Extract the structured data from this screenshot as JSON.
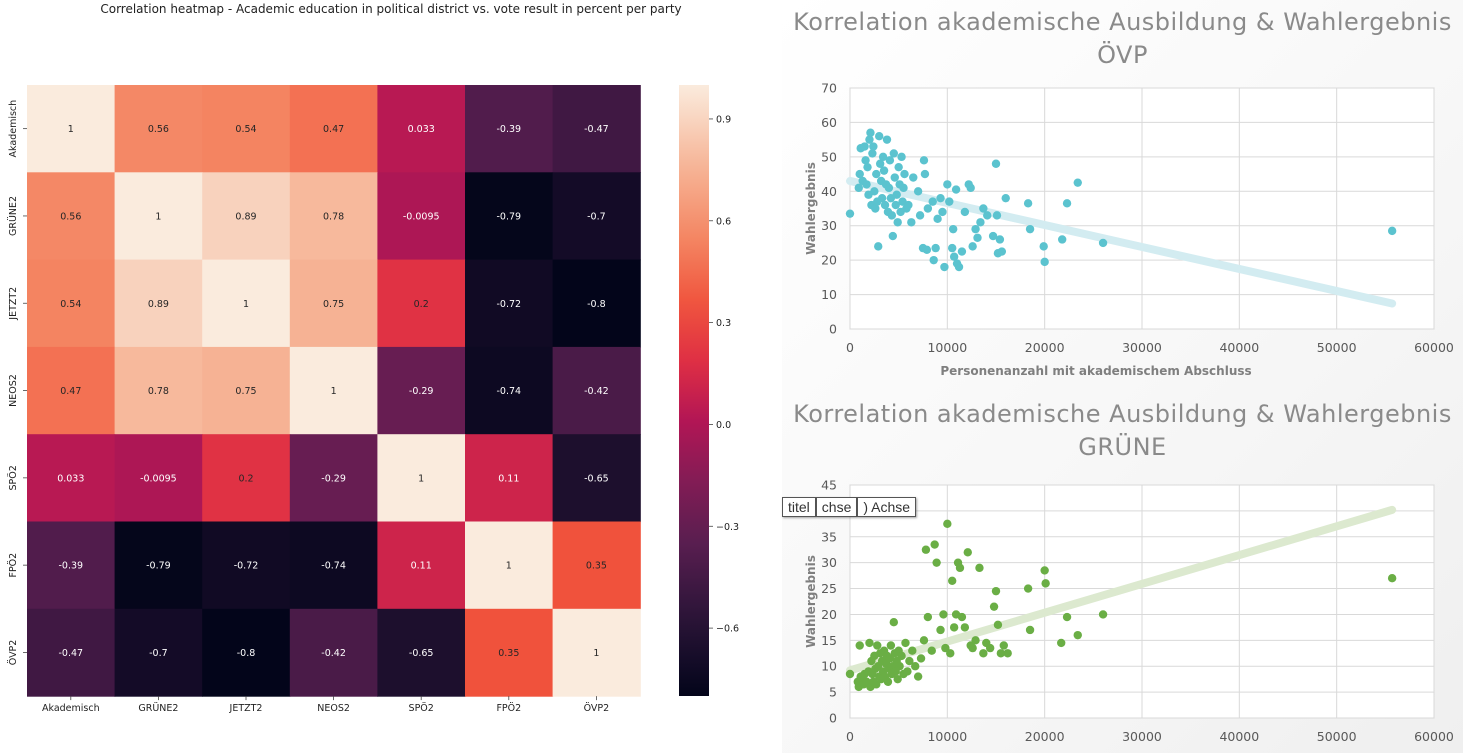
{
  "chart_data": [
    {
      "type": "heatmap",
      "title": "Correlation heatmap - Academic education in political district vs. vote result in percent per party",
      "row_labels": [
        "Akademisch",
        "GRÜNE2",
        "JETZT2",
        "NEOS2",
        "SPÖ2",
        "FPÖ2",
        "ÖVP2"
      ],
      "col_labels": [
        "Akademisch",
        "GRÜNE2",
        "JETZT2",
        "NEOS2",
        "SPÖ2",
        "FPÖ2",
        "ÖVP2"
      ],
      "values": [
        [
          1,
          0.56,
          0.54,
          0.47,
          0.033,
          -0.39,
          -0.47
        ],
        [
          0.56,
          1,
          0.89,
          0.78,
          -0.0095,
          -0.79,
          -0.7
        ],
        [
          0.54,
          0.89,
          1,
          0.75,
          0.2,
          -0.72,
          -0.8
        ],
        [
          0.47,
          0.78,
          0.75,
          1,
          -0.29,
          -0.74,
          -0.42
        ],
        [
          0.033,
          -0.0095,
          0.2,
          -0.29,
          1,
          0.11,
          -0.65
        ],
        [
          -0.39,
          -0.79,
          -0.72,
          -0.74,
          0.11,
          1,
          0.35
        ],
        [
          -0.47,
          -0.7,
          -0.8,
          -0.42,
          -0.65,
          0.35,
          1
        ]
      ],
      "annotations": [
        [
          "1",
          "0.56",
          "0.54",
          "0.47",
          "0.033",
          "-0.39",
          "-0.47"
        ],
        [
          "0.56",
          "1",
          "0.89",
          "0.78",
          "-0.0095",
          "-0.79",
          "-0.7"
        ],
        [
          "0.54",
          "0.89",
          "1",
          "0.75",
          "0.2",
          "-0.72",
          "-0.8"
        ],
        [
          "0.47",
          "0.78",
          "0.75",
          "1",
          "-0.29",
          "-0.74",
          "-0.42"
        ],
        [
          "0.033",
          "-0.0095",
          "0.2",
          "-0.29",
          "1",
          "0.11",
          "-0.65"
        ],
        [
          "-0.39",
          "-0.79",
          "-0.72",
          "-0.74",
          "0.11",
          "1",
          "0.35"
        ],
        [
          "-0.47",
          "-0.7",
          "-0.8",
          "-0.42",
          "-0.65",
          "0.35",
          "1"
        ]
      ],
      "colorbar": {
        "range": [
          -0.8,
          1.0
        ],
        "ticks": [
          0.9,
          0.6,
          0.3,
          0.0,
          -0.3,
          -0.6
        ],
        "tick_labels": [
          "0.9",
          "0.6",
          "0.3",
          "0.0",
          "−0.3",
          "−0.6"
        ]
      },
      "colormap": "rocket"
    },
    {
      "type": "scatter",
      "title": "Korrelation akademische Ausbildung & Wahlergebnis ÖVP",
      "xlabel": "Personenanzahl mit akademischem Abschluss",
      "ylabel": "Wahlergebnis",
      "xlim": [
        0,
        60000
      ],
      "ylim": [
        0,
        70
      ],
      "xticks": [
        0,
        10000,
        20000,
        30000,
        40000,
        50000,
        60000
      ],
      "yticks": [
        0,
        10,
        20,
        30,
        40,
        50,
        60,
        70
      ],
      "grid": true,
      "point_color": "#5bc3cf",
      "trendline": {
        "x": [
          0,
          55700
        ],
        "y": [
          43,
          7.4
        ],
        "color": "#d3ecf1"
      },
      "points": [
        [
          0,
          33.5
        ],
        [
          900,
          41
        ],
        [
          1000,
          45
        ],
        [
          1100,
          52.5
        ],
        [
          1300,
          43
        ],
        [
          1500,
          53
        ],
        [
          1600,
          49
        ],
        [
          1700,
          42
        ],
        [
          1800,
          47
        ],
        [
          1900,
          39
        ],
        [
          2000,
          55
        ],
        [
          2100,
          57
        ],
        [
          2200,
          36
        ],
        [
          2300,
          51
        ],
        [
          2400,
          53
        ],
        [
          2500,
          40
        ],
        [
          2600,
          35
        ],
        [
          2700,
          45
        ],
        [
          2800,
          37
        ],
        [
          2900,
          24
        ],
        [
          3000,
          56
        ],
        [
          3100,
          48
        ],
        [
          3200,
          43
        ],
        [
          3300,
          38
        ],
        [
          3400,
          50
        ],
        [
          3500,
          46
        ],
        [
          3600,
          36
        ],
        [
          3700,
          42
        ],
        [
          3800,
          55
        ],
        [
          3900,
          34
        ],
        [
          4000,
          41
        ],
        [
          4100,
          49
        ],
        [
          4200,
          38
        ],
        [
          4300,
          33
        ],
        [
          4400,
          27
        ],
        [
          4500,
          51
        ],
        [
          4600,
          44
        ],
        [
          4700,
          36
        ],
        [
          4800,
          39
        ],
        [
          4900,
          31
        ],
        [
          5000,
          47
        ],
        [
          5100,
          42
        ],
        [
          5200,
          34
        ],
        [
          5300,
          50
        ],
        [
          5400,
          37
        ],
        [
          5500,
          41
        ],
        [
          5600,
          45
        ],
        [
          5800,
          35
        ],
        [
          6000,
          36
        ],
        [
          6300,
          31
        ],
        [
          6500,
          44
        ],
        [
          7000,
          40
        ],
        [
          7200,
          33
        ],
        [
          7500,
          23.5
        ],
        [
          7600,
          49
        ],
        [
          7700,
          45
        ],
        [
          7900,
          23
        ],
        [
          8000,
          35
        ],
        [
          8500,
          37
        ],
        [
          8600,
          20
        ],
        [
          8800,
          23.5
        ],
        [
          9000,
          32
        ],
        [
          9300,
          38
        ],
        [
          9500,
          34
        ],
        [
          9700,
          18
        ],
        [
          10000,
          42
        ],
        [
          10200,
          37
        ],
        [
          10500,
          23.5
        ],
        [
          10600,
          29
        ],
        [
          10700,
          21
        ],
        [
          10900,
          40.5
        ],
        [
          11000,
          19
        ],
        [
          11200,
          18
        ],
        [
          11500,
          22.5
        ],
        [
          11800,
          34
        ],
        [
          12200,
          42
        ],
        [
          12400,
          41
        ],
        [
          12600,
          24
        ],
        [
          12900,
          29
        ],
        [
          13100,
          26.5
        ],
        [
          13400,
          31
        ],
        [
          13700,
          35
        ],
        [
          14100,
          33
        ],
        [
          14700,
          27
        ],
        [
          15000,
          48
        ],
        [
          15100,
          33
        ],
        [
          15200,
          22
        ],
        [
          15400,
          26
        ],
        [
          15600,
          22.5
        ],
        [
          16000,
          38
        ],
        [
          18300,
          36.5
        ],
        [
          18500,
          29
        ],
        [
          19900,
          24
        ],
        [
          20000,
          19.5
        ],
        [
          21800,
          26
        ],
        [
          22300,
          36.5
        ],
        [
          23400,
          42.5
        ],
        [
          26000,
          25
        ],
        [
          55700,
          28.5
        ]
      ]
    },
    {
      "type": "scatter",
      "title": "Korrelation akademische Ausbildung & Wahlergebnis GRÜNE",
      "xlabel": "",
      "ylabel": "Wahlergebnis",
      "xlim": [
        0,
        60000
      ],
      "ylim": [
        0,
        45
      ],
      "xticks": [
        0,
        10000,
        20000,
        30000,
        40000,
        50000,
        60000
      ],
      "yticks": [
        0,
        5,
        10,
        15,
        20,
        25,
        30,
        35,
        40,
        45
      ],
      "grid": true,
      "point_color": "#6aae45",
      "trendline": {
        "x": [
          0,
          55700
        ],
        "y": [
          9.2,
          40.2
        ],
        "color": "#dce9cf"
      },
      "points": [
        [
          0,
          8.5
        ],
        [
          800,
          7
        ],
        [
          900,
          6
        ],
        [
          1000,
          14
        ],
        [
          1100,
          8
        ],
        [
          1200,
          7.5
        ],
        [
          1400,
          6.5
        ],
        [
          1500,
          8.5
        ],
        [
          1700,
          7
        ],
        [
          1900,
          9
        ],
        [
          2000,
          14.5
        ],
        [
          2100,
          6
        ],
        [
          2200,
          11
        ],
        [
          2300,
          8.5
        ],
        [
          2400,
          7
        ],
        [
          2500,
          12
        ],
        [
          2600,
          9.5
        ],
        [
          2700,
          6.5
        ],
        [
          2800,
          14
        ],
        [
          2900,
          10
        ],
        [
          3000,
          8
        ],
        [
          3100,
          12.5
        ],
        [
          3200,
          7.5
        ],
        [
          3300,
          11
        ],
        [
          3400,
          9
        ],
        [
          3500,
          13
        ],
        [
          3600,
          8
        ],
        [
          3700,
          10.5
        ],
        [
          3800,
          12
        ],
        [
          3900,
          7
        ],
        [
          4000,
          9.5
        ],
        [
          4100,
          11.5
        ],
        [
          4200,
          14
        ],
        [
          4300,
          8.5
        ],
        [
          4400,
          10
        ],
        [
          4500,
          18.5
        ],
        [
          4600,
          12.5
        ],
        [
          4700,
          9
        ],
        [
          4800,
          11
        ],
        [
          4900,
          7.5
        ],
        [
          5000,
          13
        ],
        [
          5100,
          10
        ],
        [
          5300,
          12
        ],
        [
          5500,
          8.5
        ],
        [
          5700,
          14.5
        ],
        [
          5900,
          9
        ],
        [
          6100,
          11
        ],
        [
          6400,
          13
        ],
        [
          6700,
          10
        ],
        [
          7000,
          8
        ],
        [
          7300,
          11.5
        ],
        [
          7600,
          15
        ],
        [
          7800,
          32.5
        ],
        [
          8000,
          19.5
        ],
        [
          8400,
          13
        ],
        [
          8700,
          33.5
        ],
        [
          8900,
          30
        ],
        [
          9300,
          17
        ],
        [
          9600,
          20
        ],
        [
          9800,
          13.5
        ],
        [
          10000,
          37.5
        ],
        [
          10300,
          12.5
        ],
        [
          10500,
          26.5
        ],
        [
          10700,
          17.5
        ],
        [
          10900,
          20
        ],
        [
          11100,
          30
        ],
        [
          11300,
          29
        ],
        [
          11500,
          19.5
        ],
        [
          11800,
          17.5
        ],
        [
          12100,
          32
        ],
        [
          12400,
          14
        ],
        [
          12600,
          13.5
        ],
        [
          12900,
          15
        ],
        [
          13300,
          29
        ],
        [
          13700,
          12.5
        ],
        [
          14000,
          14.5
        ],
        [
          14400,
          13.5
        ],
        [
          14800,
          21.5
        ],
        [
          15000,
          24.5
        ],
        [
          15200,
          18
        ],
        [
          15500,
          12.5
        ],
        [
          15800,
          14
        ],
        [
          16200,
          12.5
        ],
        [
          18300,
          25
        ],
        [
          18500,
          17
        ],
        [
          20000,
          28.5
        ],
        [
          20100,
          26
        ],
        [
          21700,
          14.5
        ],
        [
          22300,
          19.5
        ],
        [
          23400,
          16
        ],
        [
          26000,
          20
        ],
        [
          55700,
          27
        ]
      ]
    }
  ],
  "tooltip": {
    "items": [
      "titel",
      "chse",
      ") Achse"
    ]
  }
}
